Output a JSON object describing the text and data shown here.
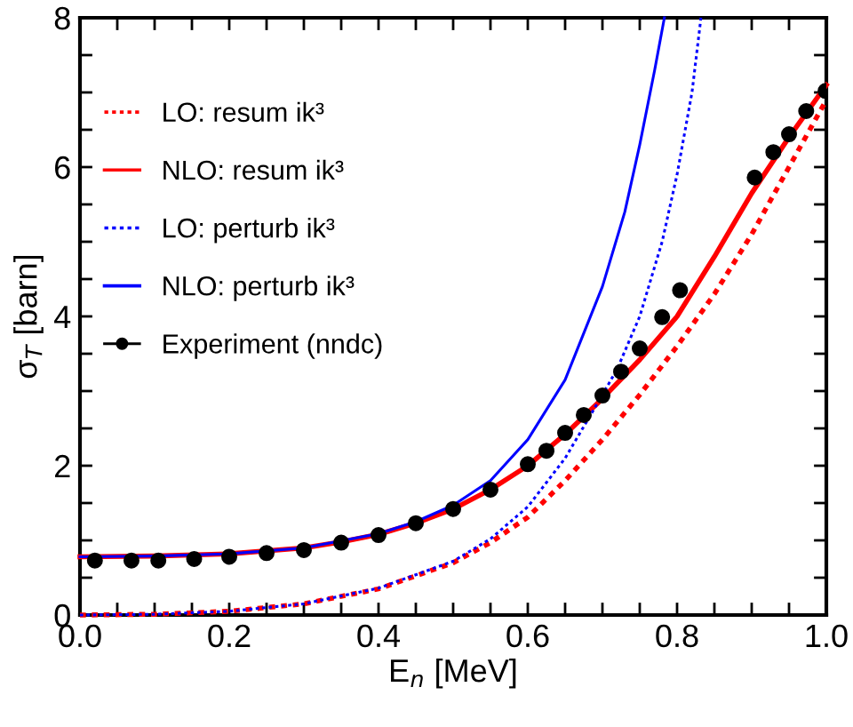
{
  "chart_data": {
    "type": "line",
    "xlabel": "E$_{n}$ [MeV]",
    "ylabel": "σ$_{T}$ [barn]",
    "xlim": [
      0,
      1
    ],
    "ylim": [
      0,
      8
    ],
    "xticks": [
      {
        "value": 0,
        "label": "0.0"
      },
      {
        "value": 0.05,
        "label": null
      },
      {
        "value": 0.1,
        "label": null
      },
      {
        "value": 0.15,
        "label": null
      },
      {
        "value": 0.2,
        "label": "0.2"
      },
      {
        "value": 0.25,
        "label": null
      },
      {
        "value": 0.3,
        "label": null
      },
      {
        "value": 0.35,
        "label": null
      },
      {
        "value": 0.4,
        "label": "0.4"
      },
      {
        "value": 0.45,
        "label": null
      },
      {
        "value": 0.5,
        "label": null
      },
      {
        "value": 0.55,
        "label": null
      },
      {
        "value": 0.6,
        "label": "0.6"
      },
      {
        "value": 0.65,
        "label": null
      },
      {
        "value": 0.7,
        "label": null
      },
      {
        "value": 0.75,
        "label": null
      },
      {
        "value": 0.8,
        "label": "0.8"
      },
      {
        "value": 0.85,
        "label": null
      },
      {
        "value": 0.9,
        "label": null
      },
      {
        "value": 0.95,
        "label": null
      },
      {
        "value": 1,
        "label": "1.0"
      }
    ],
    "yticks": [
      0,
      {
        "value": 0.5,
        "label": null
      },
      {
        "value": 1,
        "label": null
      },
      {
        "value": 1.5,
        "label": null
      },
      2,
      {
        "value": 2.5,
        "label": null
      },
      {
        "value": 3,
        "label": null
      },
      {
        "value": 3.5,
        "label": null
      },
      4,
      {
        "value": 4.5,
        "label": null
      },
      {
        "value": 5,
        "label": null
      },
      {
        "value": 5.5,
        "label": null
      },
      6,
      {
        "value": 6.5,
        "label": null
      },
      {
        "value": 7,
        "label": null
      },
      {
        "value": 7.5,
        "label": null
      },
      8
    ],
    "grid": false,
    "legend": "top left",
    "series": [
      {
        "name": "LO: resum ik³",
        "color": "#ff0000",
        "line_style": "dotted",
        "marker": "none",
        "x": [
          0,
          0.1,
          0.2,
          0.3,
          0.4,
          0.5,
          0.55,
          0.6,
          0.65,
          0.7,
          0.75,
          0.8,
          0.85,
          0.9,
          0.95,
          1.0
        ],
        "values": [
          0,
          0.01,
          0.05,
          0.15,
          0.35,
          0.7,
          0.97,
          1.31,
          1.8,
          2.35,
          2.95,
          3.6,
          4.3,
          5.1,
          6.0,
          6.9
        ]
      },
      {
        "name": "NLO: resum ik³",
        "color": "#ff0000",
        "line_style": "solid",
        "marker": "none",
        "x": [
          0,
          0.1,
          0.2,
          0.3,
          0.35,
          0.4,
          0.45,
          0.5,
          0.55,
          0.6,
          0.65,
          0.7,
          0.75,
          0.8,
          0.85,
          0.9,
          0.95,
          1.0
        ],
        "values": [
          0.78,
          0.79,
          0.82,
          0.9,
          0.98,
          1.08,
          1.23,
          1.42,
          1.68,
          2.0,
          2.42,
          2.9,
          3.42,
          4.0,
          4.8,
          5.65,
          6.4,
          7.1
        ]
      },
      {
        "name": "LO: perturb ik³",
        "color": "#0000ff",
        "line_style": "dotted",
        "marker": "none",
        "x": [
          0,
          0.1,
          0.2,
          0.3,
          0.4,
          0.5,
          0.55,
          0.6,
          0.65,
          0.7,
          0.72,
          0.75,
          0.78,
          0.8,
          0.82,
          0.832
        ],
        "values": [
          0,
          0.01,
          0.05,
          0.15,
          0.36,
          0.72,
          1.02,
          1.45,
          2.1,
          2.95,
          3.3,
          4.0,
          5.0,
          5.9,
          7.0,
          8.0
        ]
      },
      {
        "name": "NLO: perturb ik³",
        "color": "#0000ff",
        "line_style": "solid",
        "marker": "none",
        "x": [
          0,
          0.1,
          0.2,
          0.3,
          0.4,
          0.45,
          0.5,
          0.55,
          0.6,
          0.65,
          0.7,
          0.73,
          0.75,
          0.77,
          0.783
        ],
        "values": [
          0.78,
          0.79,
          0.82,
          0.9,
          1.09,
          1.25,
          1.47,
          1.8,
          2.35,
          3.15,
          4.4,
          5.4,
          6.3,
          7.3,
          8.0
        ]
      },
      {
        "name": "Experiment (nndc)",
        "color": "#000000",
        "type": "scatter",
        "marker": "circle",
        "x": [
          0.02,
          0.069,
          0.105,
          0.153,
          0.2,
          0.25,
          0.3,
          0.35,
          0.4,
          0.45,
          0.5,
          0.55,
          0.6,
          0.625,
          0.65,
          0.675,
          0.7,
          0.725,
          0.75,
          0.78,
          0.804,
          0.904,
          0.929,
          0.95,
          0.973,
          0.999
        ],
        "values": [
          0.73,
          0.73,
          0.73,
          0.75,
          0.78,
          0.83,
          0.87,
          0.97,
          1.07,
          1.23,
          1.42,
          1.68,
          2.02,
          2.2,
          2.44,
          2.68,
          2.94,
          3.26,
          3.57,
          3.99,
          4.35,
          5.86,
          6.2,
          6.44,
          6.75,
          7.02
        ]
      }
    ]
  }
}
